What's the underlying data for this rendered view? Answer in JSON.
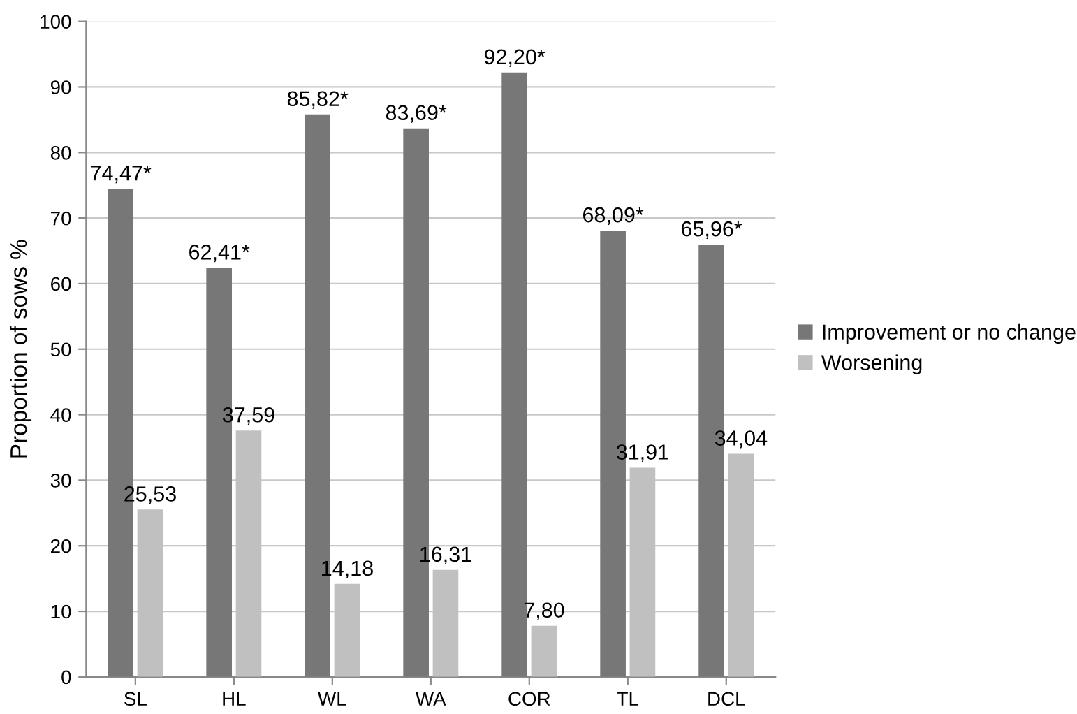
{
  "chart_data": {
    "type": "bar",
    "ylabel": "Proportion of sows %",
    "categories": [
      "SL",
      "HL",
      "WL",
      "WA",
      "COR",
      "TL",
      "DCL"
    ],
    "series": [
      {
        "name": "Improvement or no change",
        "color": "#777777",
        "values": [
          74.47,
          62.41,
          85.82,
          83.69,
          92.2,
          68.09,
          65.96
        ],
        "value_labels": [
          "74,47*",
          "62,41*",
          "85,82*",
          "83,69*",
          "92,20*",
          "68,09*",
          "65,96*"
        ]
      },
      {
        "name": "Worsening",
        "color": "#c0c0c0",
        "values": [
          25.53,
          37.59,
          14.18,
          16.31,
          7.8,
          31.91,
          34.04
        ],
        "value_labels": [
          "25,53",
          "37,59",
          "14,18",
          "16,31",
          "7,80",
          "31,91",
          "34,04"
        ]
      }
    ],
    "ylim": [
      0,
      100
    ],
    "yticks": [
      0,
      10,
      20,
      30,
      40,
      50,
      60,
      70,
      80,
      90,
      100
    ],
    "grid": "y",
    "legend": "right"
  }
}
